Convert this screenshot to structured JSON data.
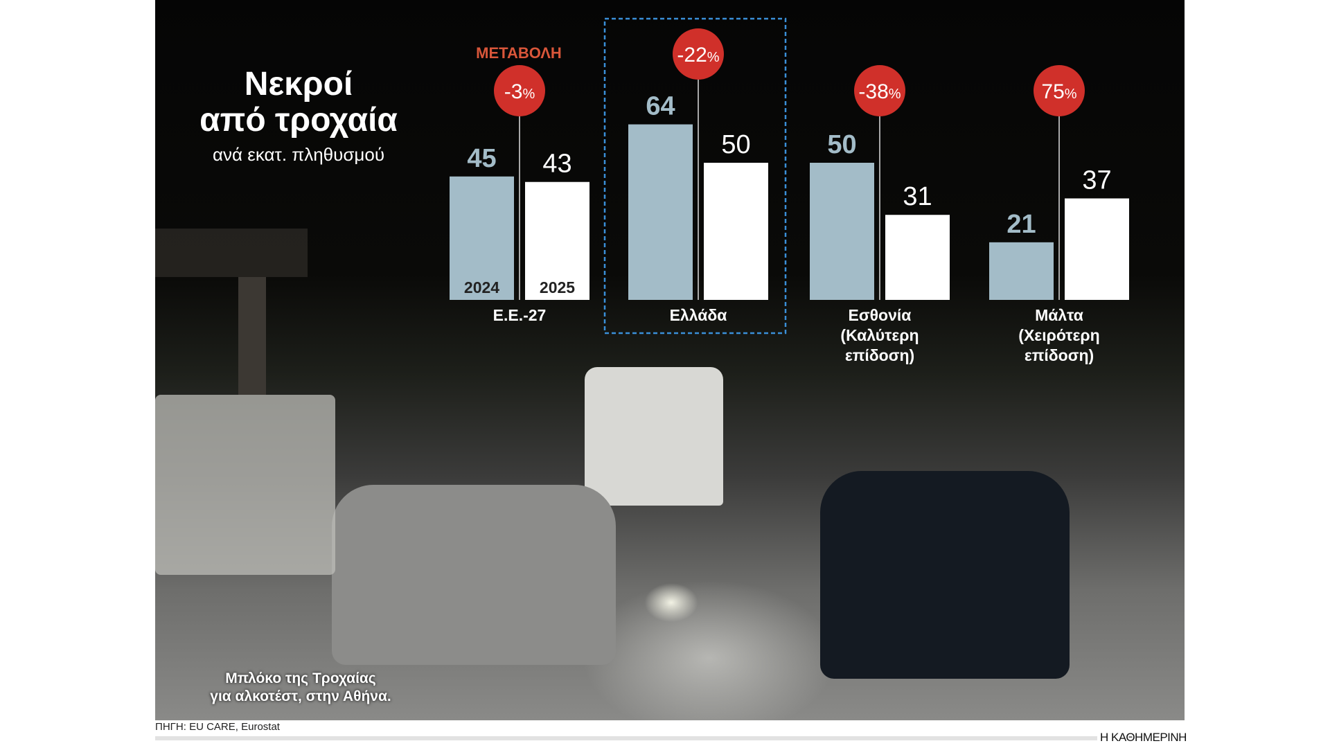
{
  "title": {
    "line1": "Νεκροί",
    "line2": "από τροχαία",
    "subtitle": "ανά εκατ. πληθυσμού"
  },
  "change_label": "ΜΕΤΑΒΟΛΗ",
  "caption": {
    "line1": "Μπλόκο της Τροχαίας",
    "line2": "για αλκοτέστ, στην Αθήνα."
  },
  "source": "ΠΗΓΗ: EU CARE, Eurostat",
  "logo": "Η ΚΑΘΗΜΕΡΙΝΗ",
  "colors": {
    "bar_2024": "#a3bcc8",
    "bar_2025": "#ffffff",
    "bubble": "#d0302a",
    "highlight_box": "#3a8fd8",
    "change_label": "#d9563a"
  },
  "chart_data": {
    "type": "bar",
    "series_labels": [
      "2024",
      "2025"
    ],
    "categories": [
      {
        "label": [
          "Ε.Ε.-27"
        ],
        "v2024": 45,
        "v2025": 43,
        "change": "-3",
        "highlight": false
      },
      {
        "label": [
          "Ελλάδα"
        ],
        "v2024": 64,
        "v2025": 50,
        "change": "-22",
        "highlight": true
      },
      {
        "label": [
          "Εσθονία",
          "(Καλύτερη",
          "επίδοση)"
        ],
        "v2024": 50,
        "v2025": 31,
        "change": "-38",
        "highlight": false
      },
      {
        "label": [
          "Μάλτα",
          "(Χειρότερη",
          "επίδοση)"
        ],
        "v2024": 21,
        "v2025": 37,
        "change": "75",
        "highlight": false
      }
    ],
    "percent_sign": "%",
    "ylim": [
      0,
      64
    ],
    "grid": false
  }
}
